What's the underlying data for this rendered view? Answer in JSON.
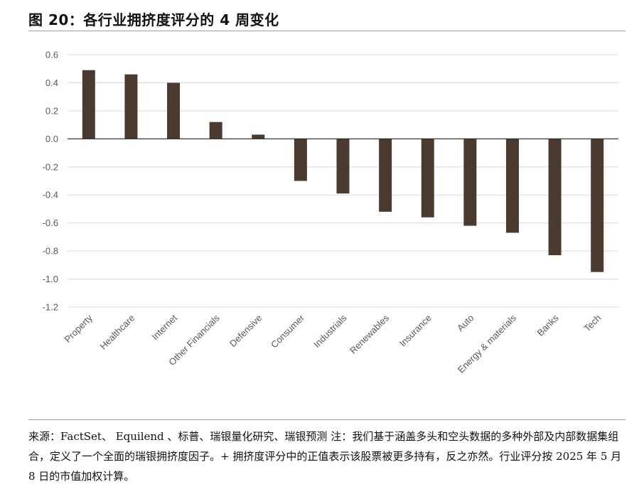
{
  "title": "图 20：各行业拥挤度评分的 4 周变化",
  "note": "来源：FactSet、 Equilend 、标普、瑞银量化研究、瑞银预测 注：我们基于涵盖多头和空头数据的多种外部及内部数据集组合，定义了一个全面的瑞银拥挤度因子。+ 拥挤度评分中的正值表示该股票被更多持有，反之亦然。行业评分按 2025 年 5 月 8 日的市值加权计算。",
  "chart_data": {
    "type": "bar",
    "title": "",
    "xlabel": "",
    "ylabel": "",
    "categories": [
      "Property",
      "Healthcare",
      "Internet",
      "Other Financials",
      "Defensive",
      "Consumer",
      "Industrials",
      "Renewables",
      "Insurance",
      "Auto",
      "Energy & materials",
      "Banks",
      "Tech"
    ],
    "values": [
      0.49,
      0.46,
      0.4,
      0.12,
      0.03,
      -0.3,
      -0.39,
      -0.52,
      -0.56,
      -0.62,
      -0.67,
      -0.83,
      -0.95
    ],
    "ylim": [
      -1.2,
      0.6
    ],
    "yticks": [
      "0.6",
      "0.4",
      "0.2",
      "0.0",
      "-0.2",
      "-0.4",
      "-0.6",
      "-0.8",
      "-1.0",
      "-1.2"
    ],
    "grid": true,
    "bar_color": "#4a3a30",
    "grid_color": "#d9d9d9"
  }
}
